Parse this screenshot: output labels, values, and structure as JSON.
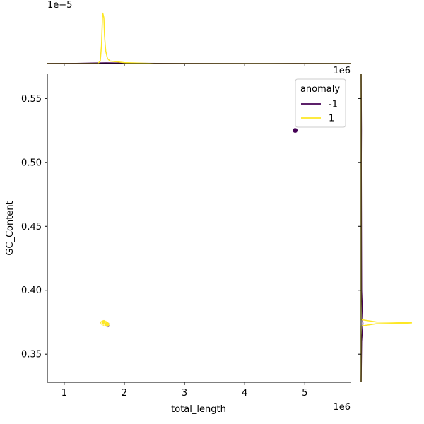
{
  "chart_data": {
    "type": "scatter",
    "title": "",
    "xlabel": "total_length",
    "ylabel": "GC_Content",
    "x_offset_label": "1e6",
    "y_top_offset_label": "1e−5",
    "y_right_offset_label": "1e6",
    "xlim": [
      720000,
      5760000
    ],
    "ylim": [
      0.328,
      0.569
    ],
    "x_ticks": [
      1000000,
      2000000,
      3000000,
      4000000,
      5000000
    ],
    "x_tick_labels": [
      "1",
      "2",
      "3",
      "4",
      "5"
    ],
    "y_ticks": [
      0.35,
      0.4,
      0.45,
      0.5,
      0.55
    ],
    "y_tick_labels": [
      "0.35",
      "0.40",
      "0.45",
      "0.50",
      "0.55"
    ],
    "legend": {
      "title": "anomaly",
      "placement": "top-right",
      "entries": [
        {
          "label": "-1",
          "color": "#440154"
        },
        {
          "label": "1",
          "color": "#fde725"
        }
      ]
    },
    "series": [
      {
        "name": "-1",
        "color": "#440154",
        "points": [
          {
            "x": 4840000,
            "y": 0.525
          },
          {
            "x": 1720000,
            "y": 0.373
          },
          {
            "x": 1700000,
            "y": 0.3735
          }
        ]
      },
      {
        "name": "1",
        "color": "#fde725",
        "points": [
          {
            "x": 1640000,
            "y": 0.3745
          },
          {
            "x": 1655000,
            "y": 0.374
          },
          {
            "x": 1665000,
            "y": 0.3742
          },
          {
            "x": 1675000,
            "y": 0.3738
          },
          {
            "x": 1685000,
            "y": 0.3743
          },
          {
            "x": 1660000,
            "y": 0.3748
          },
          {
            "x": 1710000,
            "y": 0.3733
          }
        ]
      }
    ],
    "marginal_x": {
      "series": [
        {
          "name": "-1",
          "color": "#440154",
          "x": [
            720000,
            1200000,
            1600000,
            1700000,
            1800000,
            2200000,
            3000000,
            4000000,
            4840000,
            5760000
          ],
          "density": [
            0.001,
            0.004,
            0.012,
            0.014,
            0.012,
            0.005,
            0.001,
            0.0005,
            0.001,
            0.0
          ]
        },
        {
          "name": "1",
          "color": "#fde725",
          "x": [
            720000,
            1300000,
            1560000,
            1600000,
            1620000,
            1640000,
            1650000,
            1660000,
            1670000,
            1690000,
            1720000,
            1760000,
            2000000,
            2500000,
            5760000
          ],
          "density": [
            0.0,
            0.0,
            0.0,
            0.05,
            0.35,
            1.0,
            0.95,
            0.9,
            0.55,
            0.25,
            0.1,
            0.05,
            0.02,
            0.0,
            0.0
          ]
        }
      ]
    },
    "marginal_y": {
      "series": [
        {
          "name": "-1",
          "color": "#440154",
          "y": [
            0.328,
            0.36,
            0.372,
            0.374,
            0.376,
            0.4,
            0.5,
            0.525,
            0.569
          ],
          "density": [
            0.0,
            0.01,
            0.03,
            0.035,
            0.03,
            0.01,
            0.003,
            0.005,
            0.0
          ]
        },
        {
          "name": "1",
          "color": "#fde725",
          "y": [
            0.328,
            0.372,
            0.3738,
            0.3742,
            0.3745,
            0.3748,
            0.3752,
            0.377,
            0.569
          ],
          "density": [
            0.0,
            0.0,
            0.3,
            0.9,
            1.0,
            0.85,
            0.3,
            0.0,
            0.0
          ]
        }
      ]
    }
  }
}
